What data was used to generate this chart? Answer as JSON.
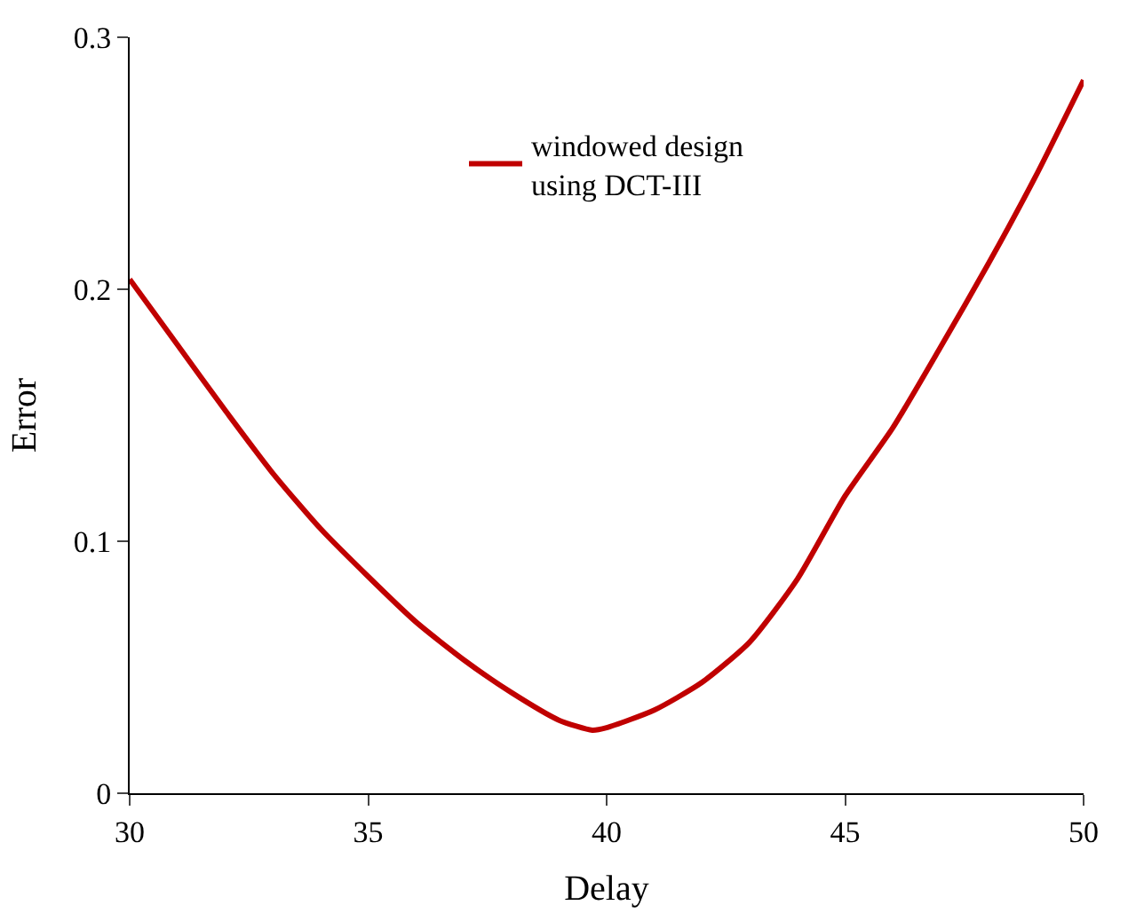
{
  "chart_data": {
    "type": "line",
    "xlabel": "Delay",
    "ylabel": "Error",
    "series": [
      {
        "name": "windowed design\nusing DCT-III",
        "color": "#c00000",
        "x": [
          30,
          31,
          32,
          33,
          34,
          35,
          36,
          37,
          38,
          39,
          39.7,
          40,
          41,
          42,
          43,
          44,
          45,
          46,
          47,
          48,
          49,
          50
        ],
        "values": [
          0.204,
          0.178,
          0.152,
          0.127,
          0.105,
          0.086,
          0.068,
          0.053,
          0.04,
          0.029,
          0.025,
          0.026,
          0.033,
          0.044,
          0.06,
          0.085,
          0.118,
          0.145,
          0.177,
          0.21,
          0.245,
          0.283
        ]
      }
    ],
    "xlim": [
      30,
      50
    ],
    "xticks": [
      30,
      35,
      40,
      45,
      50
    ],
    "ylim": [
      0,
      0.3
    ],
    "yticks": [
      0,
      0.1,
      0.2,
      0.3
    ],
    "legend": "top",
    "marker": "none",
    "line_style": "solid"
  }
}
